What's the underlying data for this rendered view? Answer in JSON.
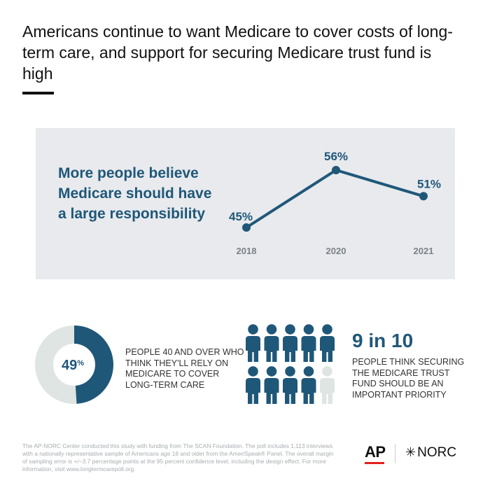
{
  "title": "Americans continue to want Medicare to cover costs of long-term care, and support for securing Medicare trust fund is high",
  "colors": {
    "accent": "#1f5779",
    "panel_bg": "#e8eaed",
    "label_gray": "#7c8288",
    "donut_rest": "#dfe5e2",
    "person_light": "#dfe5e2"
  },
  "panel": {
    "text": "More people believe Medicare should have a large responsibility"
  },
  "chart_data": {
    "type": "line",
    "x": [
      "2018",
      "2020",
      "2021"
    ],
    "series": [
      {
        "values": [
          45,
          56,
          51
        ]
      }
    ],
    "data_labels": [
      "45%",
      "56%",
      "51%"
    ],
    "y_unit": "%"
  },
  "donut_stat": {
    "value": 49,
    "number": "49",
    "unit": "%",
    "text": "PEOPLE 40 AND OVER WHO THINK THEY'LL RELY ON MEDICARE TO COVER LONG-TERM CARE"
  },
  "people_stat": {
    "filled": 9,
    "total": 10,
    "headline": "9 in 10",
    "text": "PEOPLE THINK SECURING THE MEDICARE TRUST FUND SHOULD BE AN IMPORTANT PRIORITY",
    "icon": "person-icon"
  },
  "footnote": "The AP-NORC Center conducted this study with funding from The SCAN Foundation. The poll includes 1,113 interviews with a nationally representative sample of Americans age 18 and older from the AmeriSpeak® Panel. The overall margin of sampling error is +/−3.7 percentage points at the 95 percent confidence level, including the design effect. For more information, visit www.longtermcarepoll.org.",
  "logos": {
    "ap": "AP",
    "norc": "NORC",
    "norc_mark": "✳"
  }
}
